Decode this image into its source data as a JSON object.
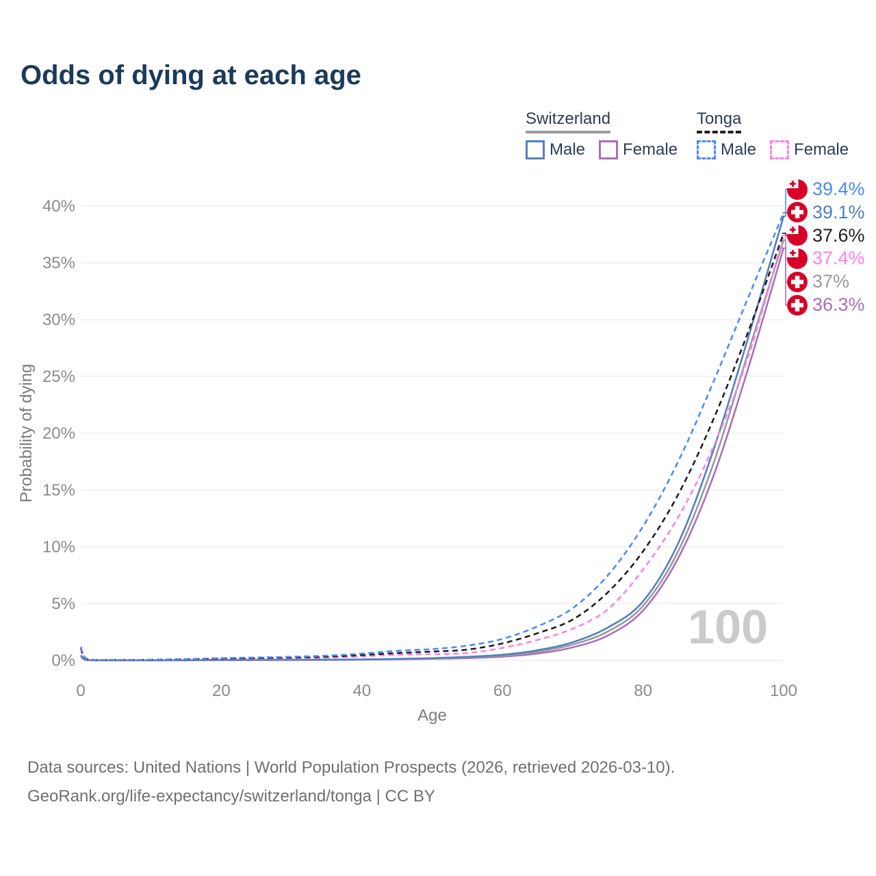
{
  "title": "Odds of dying at each age",
  "legend": {
    "groups": [
      {
        "country": "Switzerland",
        "style": "solid",
        "underline_color": "#9a9a9a",
        "items": [
          {
            "label": "Male",
            "color": "#5080c0"
          },
          {
            "label": "Female",
            "color": "#a96fbb"
          }
        ]
      },
      {
        "country": "Tonga",
        "style": "dashed",
        "underline_color": "#1f1f1f",
        "items": [
          {
            "label": "Male",
            "color": "#4a8cf5"
          },
          {
            "label": "Female",
            "color": "#ff80e5"
          }
        ]
      }
    ]
  },
  "watermark": "100",
  "footer": {
    "line1": "Data sources: United Nations | World Population Prospects (2026, retrieved 2026-03-10).",
    "line2": "GeoRank.org/life-expectancy/switzerland/tonga | CC BY"
  },
  "chart_data": {
    "type": "line",
    "title": "Odds of dying at each age",
    "xlabel": "Age",
    "ylabel": "Probability of dying",
    "xlim": [
      0,
      100
    ],
    "ylim": [
      0,
      40
    ],
    "x_ticks": [
      0,
      20,
      40,
      60,
      80,
      100
    ],
    "y_ticks": [
      0,
      5,
      10,
      15,
      20,
      25,
      30,
      35,
      40
    ],
    "y_tick_suffix": "%",
    "grid": true,
    "legend_position": "top-right",
    "ages": [
      0,
      1,
      5,
      10,
      15,
      20,
      25,
      30,
      35,
      40,
      45,
      50,
      55,
      60,
      65,
      70,
      75,
      80,
      85,
      90,
      95,
      100
    ],
    "series": [
      {
        "key": "switzerland-female",
        "name": "Switzerland Female",
        "country": "Switzerland",
        "sex": "Female",
        "color": "#a96fbb",
        "dash": null,
        "flag": "switzerland",
        "end_label": "36.3%",
        "end_value": 36.3,
        "values": [
          0.35,
          0.02,
          0.01,
          0.01,
          0.01,
          0.02,
          0.03,
          0.03,
          0.04,
          0.06,
          0.09,
          0.14,
          0.2,
          0.33,
          0.6,
          1.15,
          2.2,
          4.4,
          9.0,
          16.2,
          25.8,
          36.3
        ]
      },
      {
        "key": "switzerland-all",
        "name": "Switzerland Both sexes",
        "country": "Switzerland",
        "sex": "Both",
        "color": "#9a9a9a",
        "dash": null,
        "flag": "switzerland",
        "end_label": "37%",
        "end_value": 37.0,
        "values": [
          0.4,
          0.025,
          0.01,
          0.01,
          0.015,
          0.035,
          0.045,
          0.05,
          0.055,
          0.075,
          0.11,
          0.17,
          0.26,
          0.42,
          0.75,
          1.4,
          2.55,
          4.8,
          9.6,
          17.3,
          27.2,
          37.0
        ]
      },
      {
        "key": "switzerland-male",
        "name": "Switzerland Male",
        "country": "Switzerland",
        "sex": "Male",
        "color": "#5080c0",
        "dash": null,
        "flag": "switzerland",
        "end_label": "39.1%",
        "end_value": 39.1,
        "values": [
          0.45,
          0.03,
          0.01,
          0.01,
          0.02,
          0.05,
          0.06,
          0.06,
          0.07,
          0.09,
          0.13,
          0.2,
          0.32,
          0.5,
          0.9,
          1.6,
          2.9,
          5.2,
          10.3,
          18.5,
          28.5,
          39.1
        ]
      },
      {
        "key": "tonga-female",
        "name": "Tonga Female",
        "country": "Tonga",
        "sex": "Female",
        "color": "#ff80e5",
        "dash": "8 5.5",
        "flag": "tonga",
        "end_label": "37.4%",
        "end_value": 37.4,
        "values": [
          1.0,
          0.08,
          0.04,
          0.04,
          0.08,
          0.12,
          0.15,
          0.18,
          0.25,
          0.35,
          0.5,
          0.55,
          0.65,
          1.1,
          1.8,
          2.8,
          4.5,
          8.0,
          12.6,
          18.8,
          26.8,
          37.4
        ]
      },
      {
        "key": "tonga-all",
        "name": "Tonga Both sexes",
        "country": "Tonga",
        "sex": "Both",
        "color": "#1f1f1f",
        "dash": "8 5.5",
        "flag": "tonga",
        "end_label": "37.6%",
        "end_value": 37.6,
        "values": [
          1.1,
          0.09,
          0.045,
          0.05,
          0.1,
          0.16,
          0.2,
          0.25,
          0.33,
          0.47,
          0.65,
          0.78,
          0.95,
          1.5,
          2.4,
          3.6,
          6.0,
          9.6,
          14.6,
          21.2,
          29.0,
          37.6
        ]
      },
      {
        "key": "tonga-male",
        "name": "Tonga Male",
        "country": "Tonga",
        "sex": "Male",
        "color": "#4a8cf5",
        "dash": "8 5.5",
        "flag": "tonga",
        "end_label": "39.4%",
        "end_value": 39.4,
        "values": [
          1.2,
          0.1,
          0.05,
          0.06,
          0.12,
          0.2,
          0.26,
          0.32,
          0.42,
          0.6,
          0.85,
          1.0,
          1.3,
          1.9,
          3.0,
          4.6,
          7.5,
          11.8,
          17.5,
          24.5,
          32.0,
          39.4
        ]
      }
    ],
    "end_label_order": [
      "tonga-male",
      "switzerland-male",
      "tonga-all",
      "tonga-female",
      "switzerland-all",
      "switzerland-female"
    ],
    "flag_red": "#d80027"
  }
}
